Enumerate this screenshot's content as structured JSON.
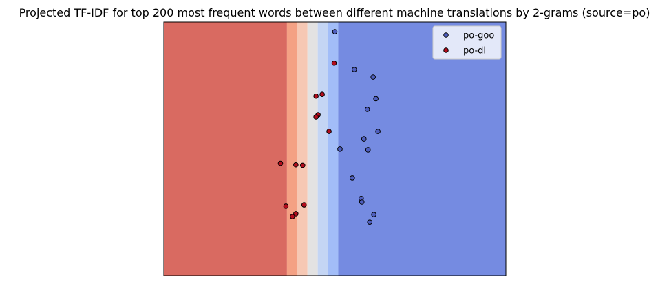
{
  "chart_data": {
    "type": "scatter",
    "title": "Projected TF-IDF for top 200 most frequent words between different machine translations by 2-grams (source=po)",
    "xlabel": "",
    "ylabel": "",
    "xlim": [
      0,
      100
    ],
    "ylim": [
      0,
      100
    ],
    "axis_ticks": false,
    "grid": false,
    "legend": "top-right",
    "background_regions": [
      {
        "x_start": 0,
        "x_end": 36,
        "color": "#d96a61"
      },
      {
        "x_start": 36,
        "x_end": 39,
        "color": "#f4a184"
      },
      {
        "x_start": 39,
        "x_end": 42,
        "color": "#f6c8b4"
      },
      {
        "x_start": 42,
        "x_end": 45,
        "color": "#e3e2e2"
      },
      {
        "x_start": 45,
        "x_end": 48,
        "color": "#c4d5f4"
      },
      {
        "x_start": 48,
        "x_end": 51,
        "color": "#a2bdf8"
      },
      {
        "x_start": 51,
        "x_end": 100,
        "color": "#758be1"
      }
    ],
    "series": [
      {
        "name": "po-goo",
        "color": "#4f5fbf",
        "points": [
          {
            "x": 50,
            "y": 96.2
          },
          {
            "x": 55.7,
            "y": 81.3
          },
          {
            "x": 61.2,
            "y": 78.3
          },
          {
            "x": 62,
            "y": 69.8
          },
          {
            "x": 59.5,
            "y": 65.6
          },
          {
            "x": 62.6,
            "y": 56.9
          },
          {
            "x": 58.5,
            "y": 53.9
          },
          {
            "x": 51.5,
            "y": 49.9
          },
          {
            "x": 59.7,
            "y": 49.6
          },
          {
            "x": 55.1,
            "y": 38.5
          },
          {
            "x": 57.7,
            "y": 30.4
          },
          {
            "x": 57.9,
            "y": 29.0
          },
          {
            "x": 61.4,
            "y": 24.1
          },
          {
            "x": 60.2,
            "y": 21.1
          }
        ]
      },
      {
        "name": "po-dl",
        "color": "#b40c1c",
        "points": [
          {
            "x": 49.8,
            "y": 83.8
          },
          {
            "x": 46.3,
            "y": 71.5
          },
          {
            "x": 44.5,
            "y": 70.8
          },
          {
            "x": 45.1,
            "y": 63.4
          },
          {
            "x": 44.5,
            "y": 62.6
          },
          {
            "x": 48.3,
            "y": 56.9
          },
          {
            "x": 34.1,
            "y": 44.3
          },
          {
            "x": 38.6,
            "y": 43.7
          },
          {
            "x": 40.6,
            "y": 43.5
          },
          {
            "x": 35.7,
            "y": 27.4
          },
          {
            "x": 41.0,
            "y": 27.9
          },
          {
            "x": 38.6,
            "y": 24.4
          },
          {
            "x": 37.6,
            "y": 23.3
          }
        ]
      }
    ]
  }
}
